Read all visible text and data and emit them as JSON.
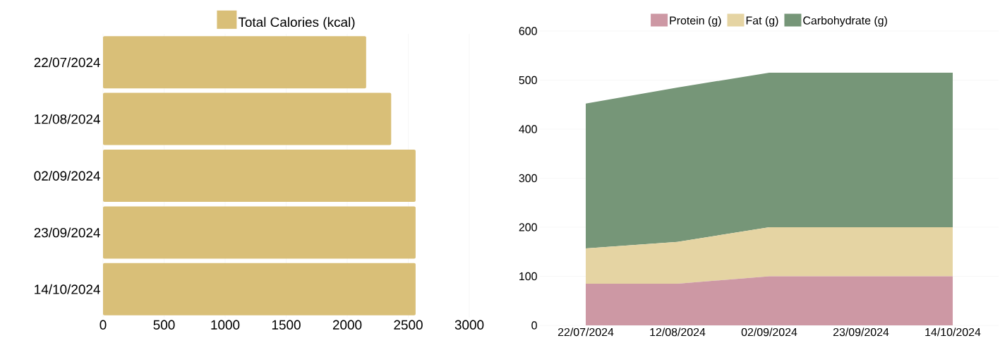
{
  "chart_data": [
    {
      "type": "bar",
      "orientation": "horizontal",
      "categories": [
        "22/07/2024",
        "12/08/2024",
        "02/09/2024",
        "23/09/2024",
        "14/10/2024"
      ],
      "series": [
        {
          "name": "Total Calories (kcal)",
          "color": "#d9bf78",
          "values": [
            2155,
            2360,
            2560,
            2560,
            2560
          ]
        }
      ],
      "xlim": [
        0,
        3000
      ],
      "xticks": [
        0,
        500,
        1000,
        1500,
        2000,
        2500,
        3000
      ],
      "grid": "x",
      "legend": "top"
    },
    {
      "type": "area",
      "stacked": true,
      "categories": [
        "22/07/2024",
        "12/08/2024",
        "02/09/2024",
        "23/09/2024",
        "14/10/2024"
      ],
      "series": [
        {
          "name": "Protein (g)",
          "color": "#cd98a4",
          "values": [
            85,
            85,
            100,
            100,
            100
          ]
        },
        {
          "name": "Fat (g)",
          "color": "#e5d4a3",
          "values": [
            72,
            85,
            100,
            100,
            100
          ]
        },
        {
          "name": "Carbohydrate (g)",
          "color": "#769678",
          "values": [
            295,
            315,
            315,
            315,
            315
          ]
        }
      ],
      "ylim": [
        0,
        600
      ],
      "yticks": [
        0,
        100,
        200,
        300,
        400,
        500,
        600
      ],
      "grid": "y",
      "legend": "top"
    }
  ]
}
